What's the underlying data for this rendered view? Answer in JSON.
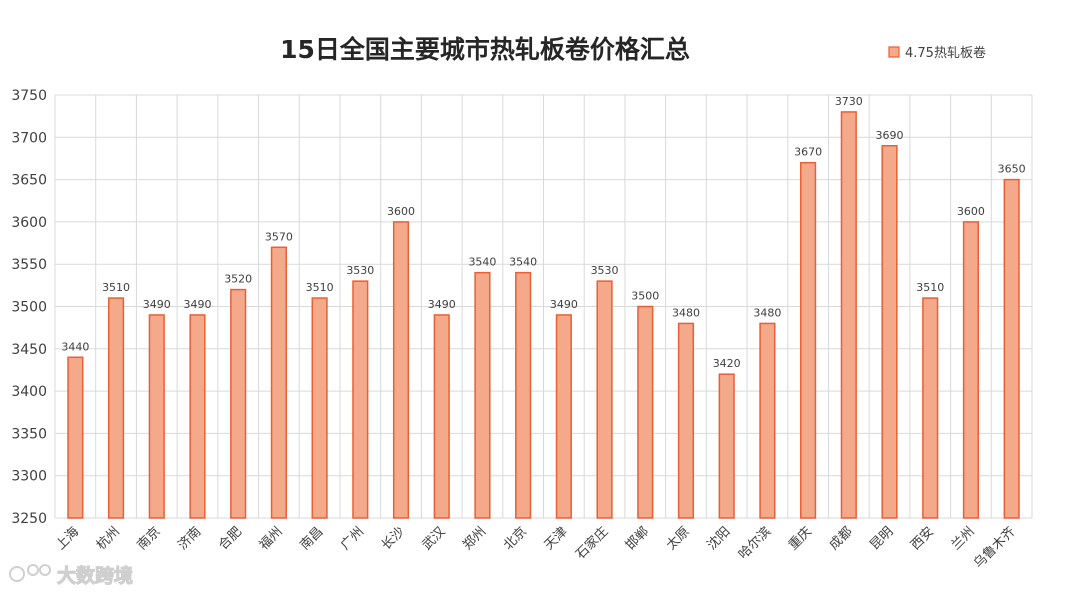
{
  "watermark": {
    "text": "大数跨境"
  },
  "chart_data": {
    "type": "bar",
    "title": "15日全国主要城市热轧板卷价格汇总",
    "legend": {
      "label": "4.75热轧板卷",
      "placement": "top-right"
    },
    "ylim": [
      3250,
      3750
    ],
    "yticks": [
      3250,
      3300,
      3350,
      3400,
      3450,
      3500,
      3550,
      3600,
      3650,
      3700,
      3750
    ],
    "grid": true,
    "colors": {
      "bar_fill": "#f4a98a",
      "bar_stroke": "#ea5f33",
      "grid": "#d9d9d9",
      "axis_text": "#404040",
      "title": "#262626"
    },
    "categories": [
      "上海",
      "杭州",
      "南京",
      "济南",
      "合肥",
      "福州",
      "南昌",
      "广州",
      "长沙",
      "武汉",
      "郑州",
      "北京",
      "天津",
      "石家庄",
      "邯郸",
      "太原",
      "沈阳",
      "哈尔滨",
      "重庆",
      "成都",
      "昆明",
      "西安",
      "兰州",
      "乌鲁木齐"
    ],
    "series": [
      {
        "name": "4.75热轧板卷",
        "values": [
          3440,
          3510,
          3490,
          3490,
          3520,
          3570,
          3510,
          3530,
          3600,
          3490,
          3540,
          3540,
          3490,
          3530,
          3500,
          3480,
          3420,
          3480,
          3670,
          3730,
          3690,
          3510,
          3600,
          3650
        ]
      }
    ]
  }
}
